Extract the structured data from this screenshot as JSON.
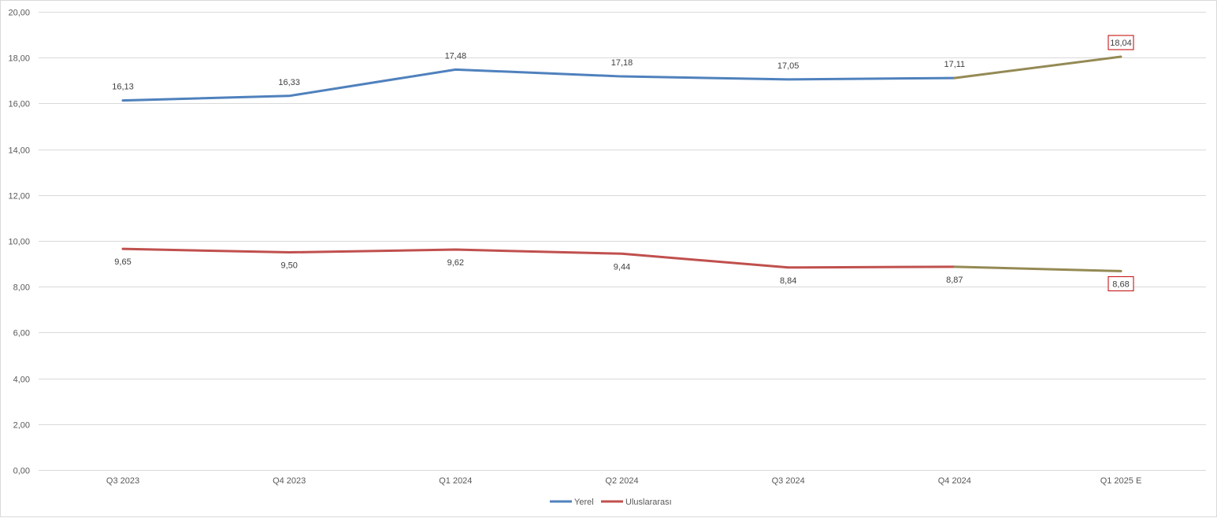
{
  "chart_data": {
    "type": "line",
    "title": "",
    "xlabel": "",
    "ylabel": "",
    "categories": [
      "Q3 2023",
      "Q4 2023",
      "Q1 2024",
      "Q2 2024",
      "Q3 2024",
      "Q4 2024",
      "Q1 2025 E"
    ],
    "y_tick_labels": [
      "0,00",
      "2,00",
      "4,00",
      "6,00",
      "8,00",
      "10,00",
      "12,00",
      "14,00",
      "16,00",
      "18,00",
      "20,00"
    ],
    "ylim": [
      0,
      20
    ],
    "grid": true,
    "legend_position": "bottom",
    "series": [
      {
        "name": "Yerel",
        "color": "#4f81bd",
        "values": [
          16.13,
          16.33,
          17.48,
          17.18,
          17.05,
          17.11,
          18.04
        ],
        "labels": [
          "16,13",
          "16,33",
          "17,48",
          "17,18",
          "17,05",
          "17,11",
          "18,04"
        ],
        "label_position": "above"
      },
      {
        "name": "Uluslararası",
        "color": "#c0504d",
        "values": [
          9.65,
          9.5,
          9.62,
          9.44,
          8.84,
          8.87,
          8.68
        ],
        "labels": [
          "9,65",
          "9,50",
          "9,62",
          "9,44",
          "8,84",
          "8,87",
          "8,68"
        ],
        "label_position": "below"
      }
    ],
    "estimate_segment_color": "#948a54",
    "estimate_label_border_color": "#c00000",
    "gridline_color": "#d9d9d9"
  }
}
